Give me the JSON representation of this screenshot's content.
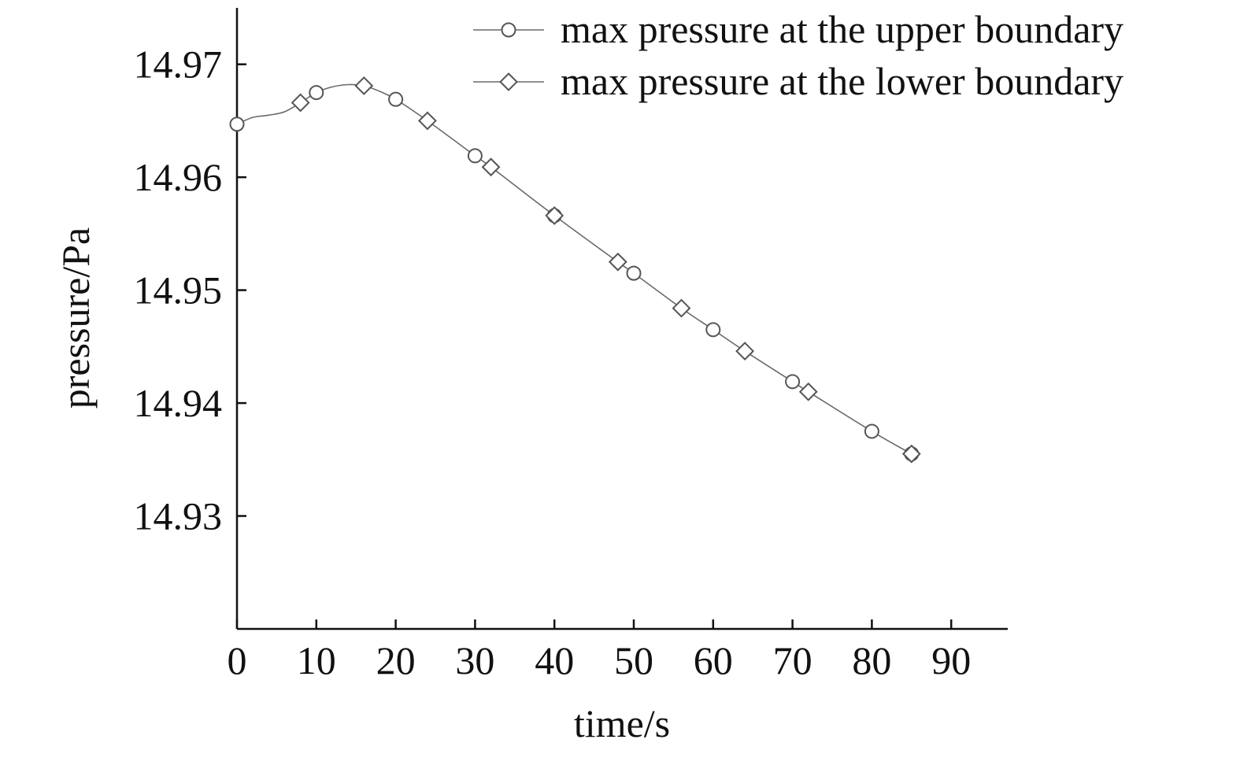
{
  "chart_data": {
    "type": "line",
    "title": "",
    "xlabel": "time/s",
    "ylabel": "pressure/Pa",
    "xlim": [
      0,
      97
    ],
    "ylim": [
      14.92,
      14.975
    ],
    "x_ticks": [
      0,
      10,
      20,
      30,
      40,
      50,
      60,
      70,
      80,
      90
    ],
    "x_tick_labels": [
      "0",
      "10",
      "20",
      "30",
      "40",
      "50",
      "60",
      "70",
      "80",
      "90"
    ],
    "y_ticks": [
      14.93,
      14.94,
      14.95,
      14.96,
      14.97
    ],
    "y_tick_labels": [
      "14.93",
      "14.94",
      "14.95",
      "14.96",
      "14.97"
    ],
    "grid": false,
    "legend_position": "top-right",
    "curve": {
      "x": [
        0,
        2,
        4,
        6,
        8,
        10,
        12,
        14,
        16,
        18,
        20,
        24,
        30,
        32,
        40,
        48,
        50,
        56,
        60,
        64,
        70,
        72,
        80,
        85
      ],
      "y": [
        14.9647,
        14.9653,
        14.9655,
        14.9658,
        14.9666,
        14.9675,
        14.968,
        14.9682,
        14.9681,
        14.9676,
        14.9669,
        14.965,
        14.9619,
        14.9609,
        14.9566,
        14.9525,
        14.9515,
        14.9484,
        14.9465,
        14.9446,
        14.9419,
        14.941,
        14.9375,
        14.9355
      ]
    },
    "series": [
      {
        "name": "max pressure at the upper boundary",
        "marker": "circle",
        "x": [
          0,
          10,
          20,
          30,
          40,
          50,
          60,
          70,
          80,
          85
        ],
        "y": [
          14.9647,
          14.9675,
          14.9669,
          14.9619,
          14.9566,
          14.9515,
          14.9465,
          14.9419,
          14.9375,
          14.9355
        ]
      },
      {
        "name": "max pressure at the lower boundary",
        "marker": "diamond",
        "x": [
          8,
          16,
          24,
          32,
          40,
          48,
          56,
          64,
          72,
          85
        ],
        "y": [
          14.9666,
          14.9681,
          14.965,
          14.9609,
          14.9566,
          14.9525,
          14.9484,
          14.9446,
          14.941,
          14.9355
        ]
      }
    ]
  }
}
